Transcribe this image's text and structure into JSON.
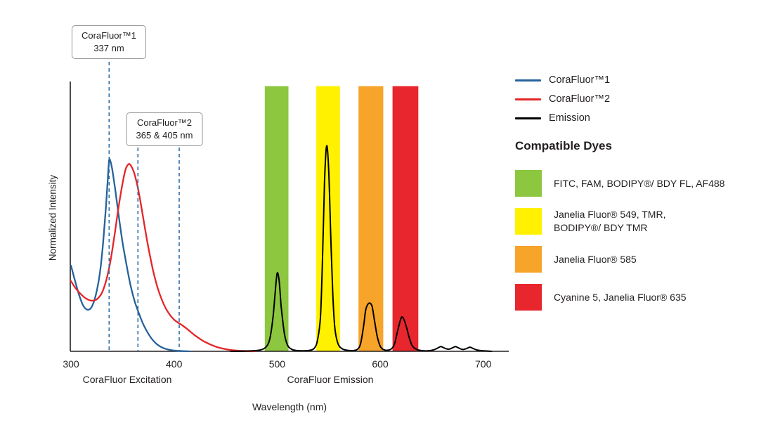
{
  "chart": {
    "y_axis_label": "Normalized Intensity",
    "x_axis_label": "Wavelength (nm)",
    "excitation_region_label": "CoraFluor Excitation",
    "emission_region_label": "CoraFluor Emission",
    "annotation_line_color": "#2E6DA4",
    "callouts": [
      {
        "line1": "CoraFluor™1",
        "line2": "337 nm",
        "marks_nm": [
          337
        ]
      },
      {
        "line1": "CoraFluor™2",
        "line2": "365 & 405 nm",
        "marks_nm": [
          365,
          405
        ]
      }
    ]
  },
  "chart_data": {
    "type": "line",
    "title": "",
    "xlabel": "Wavelength (nm)",
    "ylabel": "Normalized Intensity",
    "x_range": [
      300,
      722
    ],
    "ylim": [
      0,
      1
    ],
    "x_ticks": [
      300,
      400,
      500,
      600,
      700
    ],
    "grid": false,
    "legend_position": "right",
    "x_axis_region_labels": [
      {
        "text": "CoraFluor Excitation",
        "region_nm": [
          300,
          405
        ]
      },
      {
        "text": "CoraFluor Emission",
        "region_nm": [
          486,
          640
        ]
      }
    ],
    "annotations_nm": {
      "corafluor1_excitation_max": [
        337
      ],
      "corafluor2_excitation_max": [
        365,
        405
      ]
    },
    "series": [
      {
        "id": "corafluor1-excitation",
        "name": "CoraFluor™1",
        "color": "#25629B",
        "points": [
          [
            300,
            0.33
          ],
          [
            304,
            0.27
          ],
          [
            308,
            0.215
          ],
          [
            312,
            0.175
          ],
          [
            316,
            0.16
          ],
          [
            320,
            0.17
          ],
          [
            324,
            0.215
          ],
          [
            328,
            0.3
          ],
          [
            331,
            0.41
          ],
          [
            334,
            0.56
          ],
          [
            336,
            0.68
          ],
          [
            337,
            0.735
          ],
          [
            338,
            0.735
          ],
          [
            340,
            0.7
          ],
          [
            343,
            0.62
          ],
          [
            346,
            0.53
          ],
          [
            350,
            0.42
          ],
          [
            354,
            0.33
          ],
          [
            358,
            0.25
          ],
          [
            362,
            0.19
          ],
          [
            366,
            0.145
          ],
          [
            370,
            0.105
          ],
          [
            374,
            0.075
          ],
          [
            378,
            0.05
          ],
          [
            382,
            0.032
          ],
          [
            386,
            0.02
          ],
          [
            390,
            0.012
          ],
          [
            395,
            0.006
          ],
          [
            400,
            0.003
          ],
          [
            408,
            0.001
          ],
          [
            415,
            0
          ]
        ]
      },
      {
        "id": "corafluor2-excitation",
        "name": "CoraFluor™2",
        "color": "#E52528",
        "points": [
          [
            300,
            0.27
          ],
          [
            305,
            0.24
          ],
          [
            310,
            0.218
          ],
          [
            315,
            0.202
          ],
          [
            320,
            0.195
          ],
          [
            325,
            0.2
          ],
          [
            330,
            0.225
          ],
          [
            334,
            0.27
          ],
          [
            338,
            0.34
          ],
          [
            342,
            0.44
          ],
          [
            346,
            0.55
          ],
          [
            350,
            0.645
          ],
          [
            353,
            0.7
          ],
          [
            356,
            0.72
          ],
          [
            358,
            0.715
          ],
          [
            361,
            0.69
          ],
          [
            364,
            0.645
          ],
          [
            367,
            0.585
          ],
          [
            370,
            0.515
          ],
          [
            373,
            0.445
          ],
          [
            376,
            0.38
          ],
          [
            380,
            0.305
          ],
          [
            384,
            0.245
          ],
          [
            388,
            0.2
          ],
          [
            392,
            0.165
          ],
          [
            396,
            0.14
          ],
          [
            400,
            0.122
          ],
          [
            404,
            0.11
          ],
          [
            408,
            0.1
          ],
          [
            412,
            0.088
          ],
          [
            416,
            0.075
          ],
          [
            420,
            0.062
          ],
          [
            425,
            0.048
          ],
          [
            430,
            0.036
          ],
          [
            436,
            0.025
          ],
          [
            442,
            0.016
          ],
          [
            448,
            0.01
          ],
          [
            455,
            0.005
          ],
          [
            465,
            0.002
          ],
          [
            478,
            0
          ]
        ]
      },
      {
        "id": "emission",
        "name": "Emission",
        "color": "#000000",
        "points": [
          [
            455,
            0
          ],
          [
            470,
            0.001
          ],
          [
            480,
            0.003
          ],
          [
            486,
            0.008
          ],
          [
            490,
            0.02
          ],
          [
            493,
            0.05
          ],
          [
            496,
            0.13
          ],
          [
            498,
            0.22
          ],
          [
            500,
            0.3
          ],
          [
            502,
            0.27
          ],
          [
            504,
            0.17
          ],
          [
            507,
            0.07
          ],
          [
            510,
            0.025
          ],
          [
            514,
            0.008
          ],
          [
            519,
            0.003
          ],
          [
            526,
            0.002
          ],
          [
            532,
            0.004
          ],
          [
            536,
            0.012
          ],
          [
            539,
            0.04
          ],
          [
            542,
            0.13
          ],
          [
            544,
            0.35
          ],
          [
            546,
            0.65
          ],
          [
            548,
            0.79
          ],
          [
            550,
            0.7
          ],
          [
            552,
            0.45
          ],
          [
            554,
            0.22
          ],
          [
            556,
            0.09
          ],
          [
            559,
            0.03
          ],
          [
            563,
            0.01
          ],
          [
            568,
            0.004
          ],
          [
            574,
            0.003
          ],
          [
            578,
            0.008
          ],
          [
            581,
            0.03
          ],
          [
            584,
            0.1
          ],
          [
            586,
            0.16
          ],
          [
            589,
            0.185
          ],
          [
            592,
            0.175
          ],
          [
            594,
            0.13
          ],
          [
            597,
            0.06
          ],
          [
            600,
            0.02
          ],
          [
            603,
            0.007
          ],
          [
            607,
            0.004
          ],
          [
            611,
            0.01
          ],
          [
            614,
            0.03
          ],
          [
            617,
            0.08
          ],
          [
            620,
            0.125
          ],
          [
            622,
            0.13
          ],
          [
            625,
            0.1
          ],
          [
            628,
            0.055
          ],
          [
            631,
            0.022
          ],
          [
            635,
            0.008
          ],
          [
            640,
            0.003
          ],
          [
            646,
            0.002
          ],
          [
            652,
            0.006
          ],
          [
            656,
            0.013
          ],
          [
            659,
            0.018
          ],
          [
            662,
            0.013
          ],
          [
            666,
            0.008
          ],
          [
            670,
            0.013
          ],
          [
            673,
            0.018
          ],
          [
            676,
            0.013
          ],
          [
            680,
            0.007
          ],
          [
            684,
            0.011
          ],
          [
            687,
            0.016
          ],
          [
            690,
            0.011
          ],
          [
            694,
            0.005
          ],
          [
            700,
            0.002
          ],
          [
            708,
            0
          ]
        ]
      }
    ],
    "filter_bands_nm": [
      {
        "name": "green",
        "color": "#8DC63F",
        "from": 488,
        "to": 511
      },
      {
        "name": "yellow",
        "color": "#FFF100",
        "from": 538,
        "to": 561
      },
      {
        "name": "orange",
        "color": "#F6A42A",
        "from": 579,
        "to": 603
      },
      {
        "name": "red",
        "color": "#E8262D",
        "from": 612,
        "to": 637
      }
    ]
  },
  "legend": {
    "items": [
      {
        "label": "CoraFluor™1",
        "color": "#25629B"
      },
      {
        "label": "CoraFluor™2",
        "color": "#E52528"
      },
      {
        "label": "Emission",
        "color": "#000000"
      }
    ]
  },
  "compatible_dyes": {
    "title": "Compatible Dyes",
    "items": [
      {
        "color": "#8DC63F",
        "label": "FITC, FAM, BODIPY®/ BDY FL, AF488"
      },
      {
        "color": "#FFF100",
        "label": "Janelia Fluor® 549, TMR,\nBODIPY®/ BDY TMR"
      },
      {
        "color": "#F6A42A",
        "label": "Janelia Fluor® 585"
      },
      {
        "color": "#E8262D",
        "label": "Cyanine 5, Janelia Fluor® 635"
      }
    ]
  }
}
